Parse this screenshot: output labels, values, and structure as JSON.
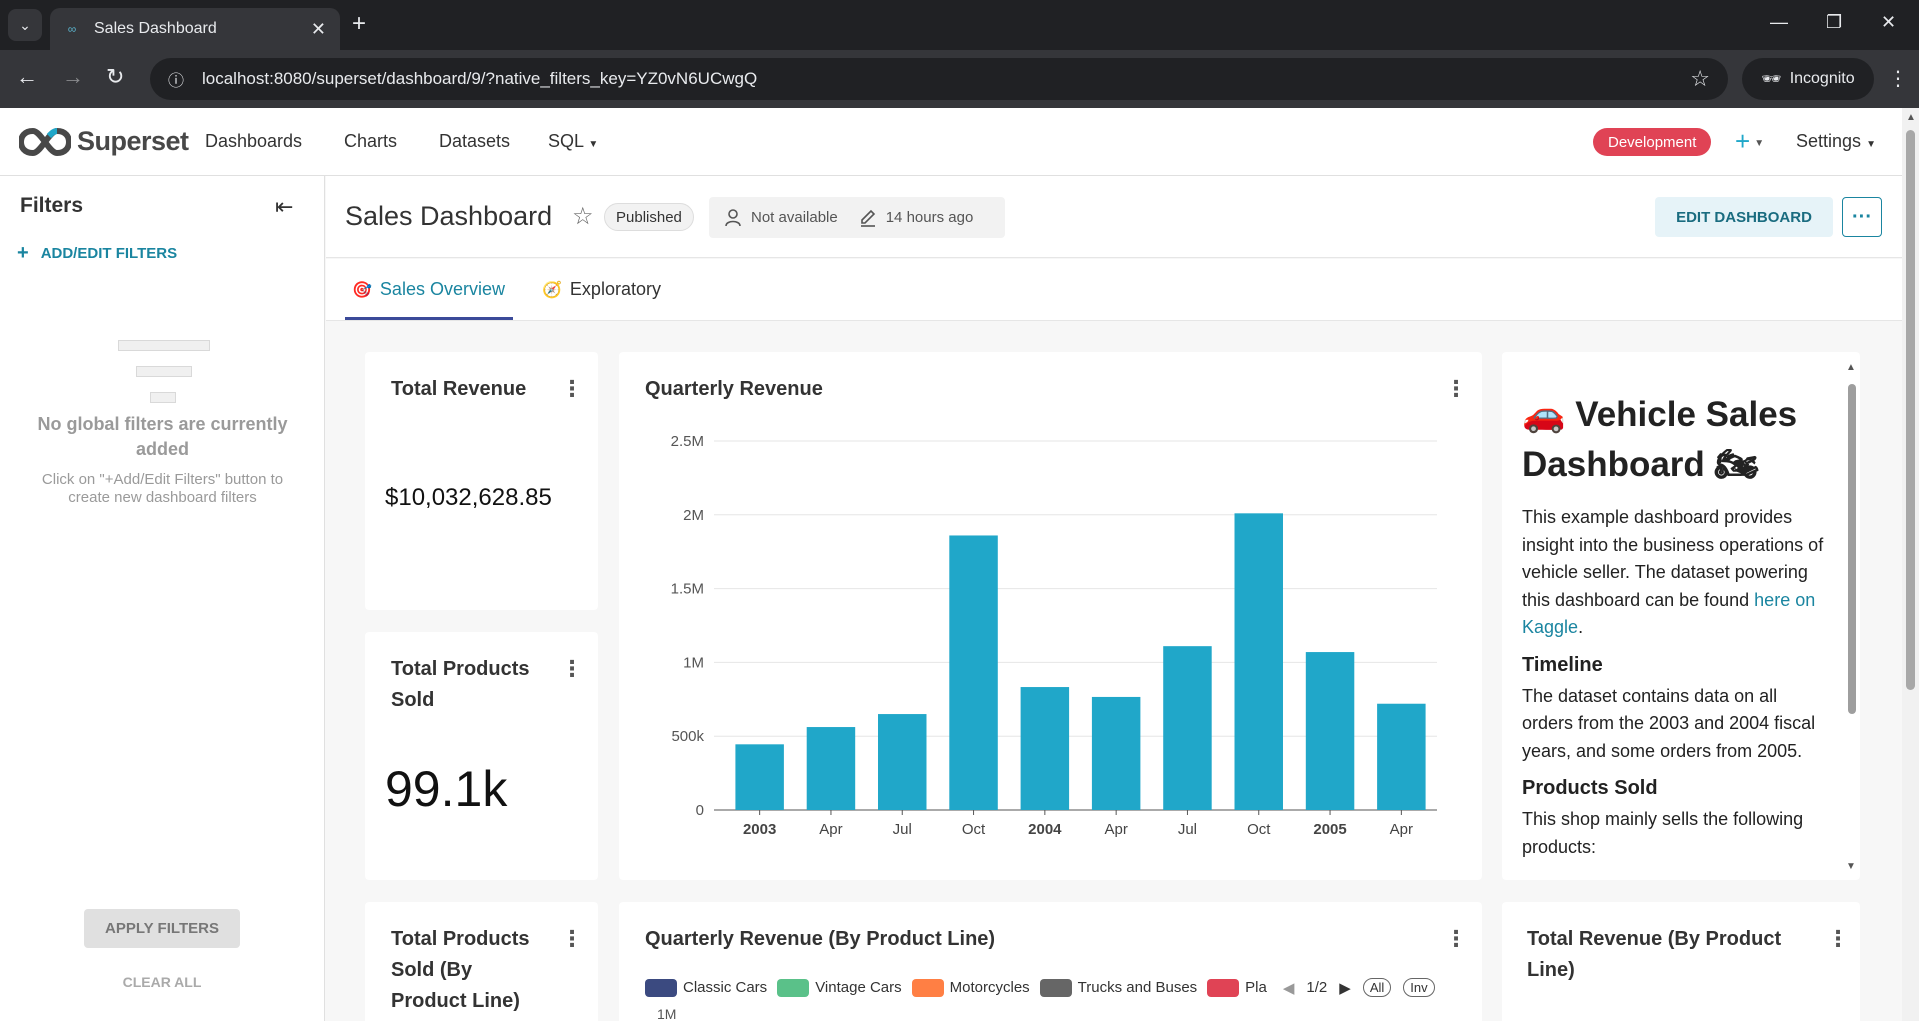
{
  "browser": {
    "tab_title": "Sales Dashboard",
    "url": "localhost:8080/superset/dashboard/9/?native_filters_key=YZ0vN6UCwgQ",
    "incognito_label": "Incognito"
  },
  "appbar": {
    "logo_text": "Superset",
    "menu": [
      "Dashboards",
      "Charts",
      "Datasets",
      "SQL"
    ],
    "env_badge": "Development",
    "settings_label": "Settings",
    "colors": {
      "badge": "#e04355",
      "accent": "#20a7c9"
    }
  },
  "sidebar": {
    "title": "Filters",
    "add_filters": "ADD/EDIT FILTERS",
    "empty_title": "No global filters are currently added",
    "empty_desc": "Click on \"+Add/Edit Filters\" button to create new dashboard filters",
    "apply": "APPLY FILTERS",
    "clear": "CLEAR ALL"
  },
  "dashboard": {
    "title": "Sales Dashboard",
    "status": "Published",
    "owner": "Not available",
    "modified": "14 hours ago",
    "edit_button": "EDIT DASHBOARD",
    "tabs": [
      {
        "label": "Sales Overview",
        "emoji": "🎯"
      },
      {
        "label": "Exploratory",
        "emoji": "🧭"
      }
    ]
  },
  "cards": {
    "total_revenue": {
      "title": "Total Revenue",
      "value": "$10,032,628.85"
    },
    "total_products": {
      "title": "Total Products Sold",
      "value": "99.1k"
    },
    "products_by_line": {
      "title": "Total Products Sold (By Product Line)"
    },
    "quarterly_by_line": {
      "title": "Quarterly Revenue (By Product Line)",
      "legend": [
        {
          "name": "Classic Cars",
          "color": "#3b4a80"
        },
        {
          "name": "Vintage Cars",
          "color": "#5ac189"
        },
        {
          "name": "Motorcycles",
          "color": "#ff7f44"
        },
        {
          "name": "Trucks and Buses",
          "color": "#666666"
        },
        {
          "name": "Pla",
          "color": "#e04355"
        }
      ],
      "pager": "1/2",
      "all_label": "All",
      "inv_label": "Inv",
      "first_tick": "1M"
    },
    "revenue_by_line": {
      "title": "Total Revenue (By Product Line)"
    }
  },
  "chart_data": {
    "type": "bar",
    "title": "Quarterly Revenue",
    "categories": [
      "2003",
      "Apr",
      "Jul",
      "Oct",
      "2004",
      "Apr",
      "Jul",
      "Oct",
      "2005",
      "Apr"
    ],
    "bold_categories": [
      "2003",
      "2004",
      "2005"
    ],
    "values": [
      445000,
      562000,
      650000,
      1860000,
      833000,
      766000,
      1110000,
      2010000,
      1070000,
      720000
    ],
    "ylim": [
      0,
      2500000
    ],
    "yticks": [
      0,
      500000,
      1000000,
      1500000,
      2000000,
      2500000
    ],
    "ytick_labels": [
      "0",
      "500k",
      "1M",
      "1.5M",
      "2M",
      "2.5M"
    ],
    "color": "#20a7c9",
    "grid": true,
    "xlabel": "",
    "ylabel": ""
  },
  "markdown": {
    "heading": "🚗 Vehicle Sales Dashboard 🏍",
    "intro": "This example dashboard provides insight into the business operations of vehicle seller. The dataset powering this dashboard can be found ",
    "link": "here on Kaggle",
    "intro_end": ".",
    "timeline_title": "Timeline",
    "timeline_text": "The dataset contains data on all orders from the 2003 and 2004 fiscal years, and some orders from 2005.",
    "products_title": "Products Sold",
    "products_text": "This shop mainly sells the following products:"
  }
}
